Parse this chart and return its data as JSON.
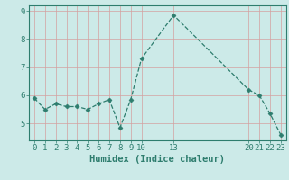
{
  "x": [
    0,
    1,
    2,
    3,
    4,
    5,
    6,
    7,
    8,
    9,
    10,
    13,
    20,
    21,
    22,
    23
  ],
  "y": [
    5.9,
    5.5,
    5.7,
    5.6,
    5.6,
    5.5,
    5.7,
    5.85,
    4.85,
    5.85,
    7.3,
    8.85,
    6.2,
    6.0,
    5.35,
    4.6
  ],
  "xticks": [
    0,
    1,
    2,
    3,
    4,
    5,
    6,
    7,
    8,
    9,
    10,
    13,
    20,
    21,
    22,
    23
  ],
  "yticks": [
    5,
    6,
    7,
    8,
    9
  ],
  "ylim": [
    4.4,
    9.2
  ],
  "xlim": [
    -0.5,
    23.5
  ],
  "xlabel": "Humidex (Indice chaleur)",
  "line_color": "#2e7d6e",
  "marker": "D",
  "marker_size": 2.5,
  "bg_color": "#cceae8",
  "grid_color_v": "#d4a0a0",
  "grid_color_h": "#d4a0a0",
  "axis_color": "#2e7d6e",
  "tick_label_color": "#2e7d6e",
  "xlabel_color": "#2e7d6e",
  "tick_fontsize": 6.5,
  "xlabel_fontsize": 7.5
}
